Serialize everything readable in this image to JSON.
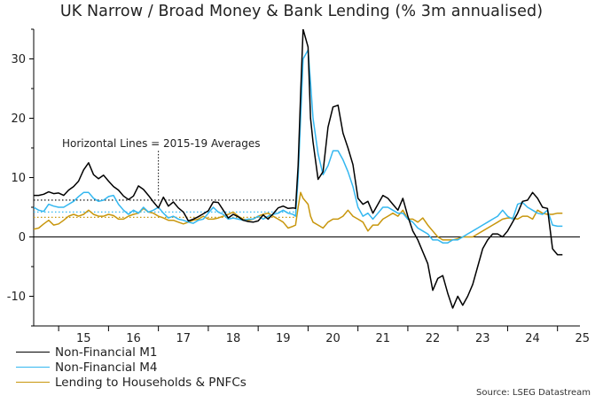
{
  "title": "UK Narrow / Broad Money & Bank Lending (% 3m annualised)",
  "source": "Source: LSEG Datastream",
  "colors": {
    "m1": "#000000",
    "m4": "#33b7f0",
    "lending": "#c8960c",
    "zero": "#000000"
  },
  "chart_data": {
    "type": "line",
    "title": "UK Narrow / Broad Money & Bank Lending (% 3m annualised)",
    "xlabel": "",
    "ylabel": "",
    "xlim": [
      2014.5,
      2025.45
    ],
    "ylim": [
      -15,
      35
    ],
    "yticks": [
      -10,
      0,
      10,
      20,
      30
    ],
    "ytick_labels": [
      "-10",
      "0",
      "10",
      "20",
      "30"
    ],
    "xticks": [
      2015,
      2016,
      2017,
      2018,
      2019,
      2020,
      2021,
      2022,
      2023,
      2024,
      2025
    ],
    "xtick_labels": [
      "15",
      "16",
      "17",
      "18",
      "19",
      "20",
      "21",
      "22",
      "23",
      "24",
      "25"
    ],
    "legend_position": "bottom-left",
    "annotation": {
      "text": "Horizontal Lines = 2015-19 Averages",
      "x": 2017.0,
      "y_from": 14.5,
      "y_to": 7.0
    },
    "averages": [
      {
        "series": "Non-Financial M1",
        "value": 6.2,
        "x_from": 2014.5,
        "x_to": 2019.75
      },
      {
        "series": "Non-Financial M4",
        "value": 4.2,
        "x_from": 2014.5,
        "x_to": 2019.75
      },
      {
        "series": "Lending to Households & PNFCs",
        "value": 3.3,
        "x_from": 2014.5,
        "x_to": 2019.75
      }
    ],
    "series": [
      {
        "name": "Non-Financial M1",
        "x": [
          2014.5,
          2014.6,
          2014.7,
          2014.8,
          2014.9,
          2015.0,
          2015.1,
          2015.2,
          2015.3,
          2015.4,
          2015.5,
          2015.6,
          2015.7,
          2015.8,
          2015.9,
          2016.0,
          2016.1,
          2016.2,
          2016.3,
          2016.4,
          2016.5,
          2016.6,
          2016.7,
          2016.8,
          2016.9,
          2017.0,
          2017.1,
          2017.2,
          2017.3,
          2017.4,
          2017.5,
          2017.6,
          2017.7,
          2017.8,
          2017.9,
          2018.0,
          2018.1,
          2018.2,
          2018.3,
          2018.4,
          2018.5,
          2018.6,
          2018.7,
          2018.8,
          2018.9,
          2019.0,
          2019.1,
          2019.2,
          2019.3,
          2019.4,
          2019.5,
          2019.6,
          2019.7,
          2019.75,
          2019.8,
          2019.85,
          2019.9,
          2020.0,
          2020.05,
          2020.1,
          2020.2,
          2020.3,
          2020.4,
          2020.5,
          2020.6,
          2020.7,
          2020.8,
          2020.9,
          2021.0,
          2021.1,
          2021.2,
          2021.3,
          2021.4,
          2021.5,
          2021.6,
          2021.7,
          2021.8,
          2021.9,
          2022.0,
          2022.1,
          2022.2,
          2022.3,
          2022.4,
          2022.5,
          2022.6,
          2022.7,
          2022.8,
          2022.9,
          2023.0,
          2023.1,
          2023.2,
          2023.3,
          2023.4,
          2023.5,
          2023.6,
          2023.7,
          2023.8,
          2023.9,
          2024.0,
          2024.1,
          2024.2,
          2024.3,
          2024.4,
          2024.5,
          2024.6,
          2024.7,
          2024.8,
          2024.9,
          2025.0,
          2025.1
        ],
        "y": [
          7.0,
          7.0,
          7.2,
          7.6,
          7.3,
          7.4,
          7.0,
          7.9,
          8.5,
          9.4,
          11.3,
          12.5,
          10.5,
          9.8,
          10.4,
          9.4,
          8.5,
          7.9,
          6.9,
          6.3,
          6.9,
          8.6,
          8.0,
          7.0,
          5.9,
          4.9,
          6.7,
          5.2,
          5.9,
          4.9,
          4.2,
          2.7,
          3.0,
          3.4,
          3.9,
          4.4,
          5.9,
          5.8,
          4.5,
          3.2,
          3.8,
          3.4,
          2.8,
          2.6,
          2.5,
          2.7,
          3.7,
          3.0,
          3.9,
          4.9,
          5.2,
          4.8,
          4.9,
          4.8,
          12.0,
          24.0,
          35.0,
          32.0,
          20.0,
          16.0,
          9.7,
          11.0,
          18.5,
          21.9,
          22.2,
          17.5,
          15.0,
          12.2,
          6.5,
          5.5,
          6.0,
          4.0,
          5.5,
          7.0,
          6.5,
          5.5,
          4.5,
          6.5,
          3.5,
          1.0,
          -0.5,
          -2.5,
          -4.5,
          -9.0,
          -7.0,
          -6.5,
          -9.5,
          -12.0,
          -10.0,
          -11.5,
          -10.0,
          -8.0,
          -5.0,
          -2.0,
          -0.5,
          0.5,
          0.5,
          0.0,
          1.0,
          2.5,
          4.0,
          6.0,
          6.2,
          7.5,
          6.5,
          5.0,
          4.8,
          -2.0,
          -3.0,
          -3.0
        ]
      },
      {
        "name": "Non-Financial M4",
        "x": [
          2014.5,
          2014.6,
          2014.7,
          2014.8,
          2014.9,
          2015.0,
          2015.1,
          2015.2,
          2015.3,
          2015.4,
          2015.5,
          2015.6,
          2015.7,
          2015.8,
          2015.9,
          2016.0,
          2016.1,
          2016.2,
          2016.3,
          2016.4,
          2016.5,
          2016.6,
          2016.7,
          2016.8,
          2016.9,
          2017.0,
          2017.1,
          2017.2,
          2017.3,
          2017.4,
          2017.5,
          2017.6,
          2017.7,
          2017.8,
          2017.9,
          2018.0,
          2018.1,
          2018.2,
          2018.3,
          2018.4,
          2018.5,
          2018.6,
          2018.7,
          2018.8,
          2018.9,
          2019.0,
          2019.1,
          2019.2,
          2019.3,
          2019.4,
          2019.5,
          2019.6,
          2019.7,
          2019.75,
          2019.8,
          2019.85,
          2019.9,
          2020.0,
          2020.05,
          2020.1,
          2020.2,
          2020.3,
          2020.4,
          2020.5,
          2020.6,
          2020.7,
          2020.8,
          2020.9,
          2021.0,
          2021.1,
          2021.2,
          2021.3,
          2021.4,
          2021.5,
          2021.6,
          2021.7,
          2021.8,
          2021.9,
          2022.0,
          2022.1,
          2022.2,
          2022.3,
          2022.4,
          2022.5,
          2022.6,
          2022.7,
          2022.8,
          2022.9,
          2023.0,
          2023.1,
          2023.2,
          2023.3,
          2023.4,
          2023.5,
          2023.6,
          2023.7,
          2023.8,
          2023.9,
          2024.0,
          2024.1,
          2024.2,
          2024.3,
          2024.4,
          2024.5,
          2024.6,
          2024.7,
          2024.8,
          2024.9,
          2025.0,
          2025.1
        ],
        "y": [
          5.0,
          4.5,
          4.3,
          5.5,
          5.2,
          5.0,
          5.0,
          5.5,
          6.0,
          6.8,
          7.5,
          7.5,
          6.5,
          6.0,
          6.2,
          6.8,
          7.0,
          5.5,
          4.5,
          3.8,
          4.5,
          4.0,
          5.0,
          4.2,
          4.5,
          5.0,
          4.0,
          3.2,
          3.5,
          3.0,
          2.8,
          2.5,
          2.3,
          2.8,
          3.0,
          4.0,
          5.0,
          4.2,
          3.8,
          3.0,
          3.2,
          3.0,
          2.8,
          3.0,
          3.0,
          3.5,
          3.0,
          3.5,
          3.8,
          4.0,
          4.5,
          4.0,
          3.8,
          3.5,
          10.0,
          20.0,
          30.0,
          31.5,
          26.0,
          20.0,
          14.0,
          10.5,
          12.0,
          14.5,
          14.5,
          13.0,
          11.0,
          8.5,
          5.0,
          3.5,
          4.0,
          3.0,
          4.0,
          5.0,
          5.0,
          4.5,
          4.0,
          4.0,
          3.0,
          2.5,
          1.5,
          1.0,
          0.5,
          -0.5,
          -0.5,
          -1.0,
          -1.0,
          -0.5,
          -0.5,
          0.0,
          0.5,
          1.0,
          1.5,
          2.0,
          2.5,
          3.0,
          3.5,
          4.5,
          3.5,
          3.0,
          5.5,
          5.8,
          5.0,
          4.5,
          4.0,
          3.8,
          4.5,
          2.0,
          1.8,
          1.8
        ]
      },
      {
        "name": "Lending to Households & PNFCs",
        "x": [
          2014.5,
          2014.6,
          2014.7,
          2014.8,
          2014.9,
          2015.0,
          2015.1,
          2015.2,
          2015.3,
          2015.4,
          2015.5,
          2015.6,
          2015.7,
          2015.8,
          2015.9,
          2016.0,
          2016.1,
          2016.2,
          2016.3,
          2016.4,
          2016.5,
          2016.6,
          2016.7,
          2016.8,
          2016.9,
          2017.0,
          2017.1,
          2017.2,
          2017.3,
          2017.4,
          2017.5,
          2017.6,
          2017.7,
          2017.8,
          2017.9,
          2018.0,
          2018.1,
          2018.2,
          2018.3,
          2018.4,
          2018.5,
          2018.6,
          2018.7,
          2018.8,
          2018.9,
          2019.0,
          2019.1,
          2019.2,
          2019.3,
          2019.4,
          2019.5,
          2019.6,
          2019.7,
          2019.75,
          2019.8,
          2019.85,
          2019.9,
          2020.0,
          2020.05,
          2020.1,
          2020.2,
          2020.3,
          2020.4,
          2020.5,
          2020.6,
          2020.7,
          2020.8,
          2020.9,
          2021.0,
          2021.1,
          2021.2,
          2021.3,
          2021.4,
          2021.5,
          2021.6,
          2021.7,
          2021.8,
          2021.9,
          2022.0,
          2022.1,
          2022.2,
          2022.3,
          2022.4,
          2022.5,
          2022.6,
          2022.7,
          2022.8,
          2022.9,
          2023.0,
          2023.1,
          2023.2,
          2023.3,
          2023.4,
          2023.5,
          2023.6,
          2023.7,
          2023.8,
          2023.9,
          2024.0,
          2024.1,
          2024.2,
          2024.3,
          2024.4,
          2024.5,
          2024.6,
          2024.7,
          2024.8,
          2024.9,
          2025.0,
          2025.1
        ],
        "y": [
          1.3,
          1.5,
          2.2,
          2.8,
          2.0,
          2.2,
          2.8,
          3.5,
          3.8,
          3.5,
          3.8,
          4.5,
          3.8,
          3.5,
          3.5,
          3.8,
          3.6,
          3.0,
          3.0,
          3.5,
          3.8,
          4.0,
          4.8,
          4.2,
          4.0,
          3.5,
          3.2,
          2.8,
          2.8,
          2.5,
          2.2,
          2.5,
          2.8,
          3.0,
          3.5,
          3.0,
          3.0,
          3.2,
          3.5,
          3.8,
          4.2,
          3.5,
          3.0,
          2.8,
          3.0,
          3.5,
          3.8,
          4.0,
          3.5,
          3.0,
          2.5,
          1.5,
          1.8,
          2.0,
          5.0,
          7.5,
          6.5,
          5.5,
          3.5,
          2.5,
          2.0,
          1.5,
          2.5,
          3.0,
          3.0,
          3.5,
          4.5,
          3.5,
          3.0,
          2.5,
          1.0,
          2.0,
          2.0,
          3.0,
          3.5,
          4.0,
          3.5,
          4.5,
          3.0,
          3.0,
          2.5,
          3.2,
          2.0,
          1.0,
          0.0,
          -0.5,
          -0.5,
          -0.5,
          -0.3,
          0.0,
          0.0,
          0.0,
          0.5,
          1.0,
          1.5,
          2.0,
          2.5,
          3.0,
          3.2,
          3.2,
          3.0,
          3.5,
          3.5,
          3.0,
          4.5,
          4.0,
          3.8,
          3.8,
          4.0,
          4.0
        ]
      }
    ]
  }
}
